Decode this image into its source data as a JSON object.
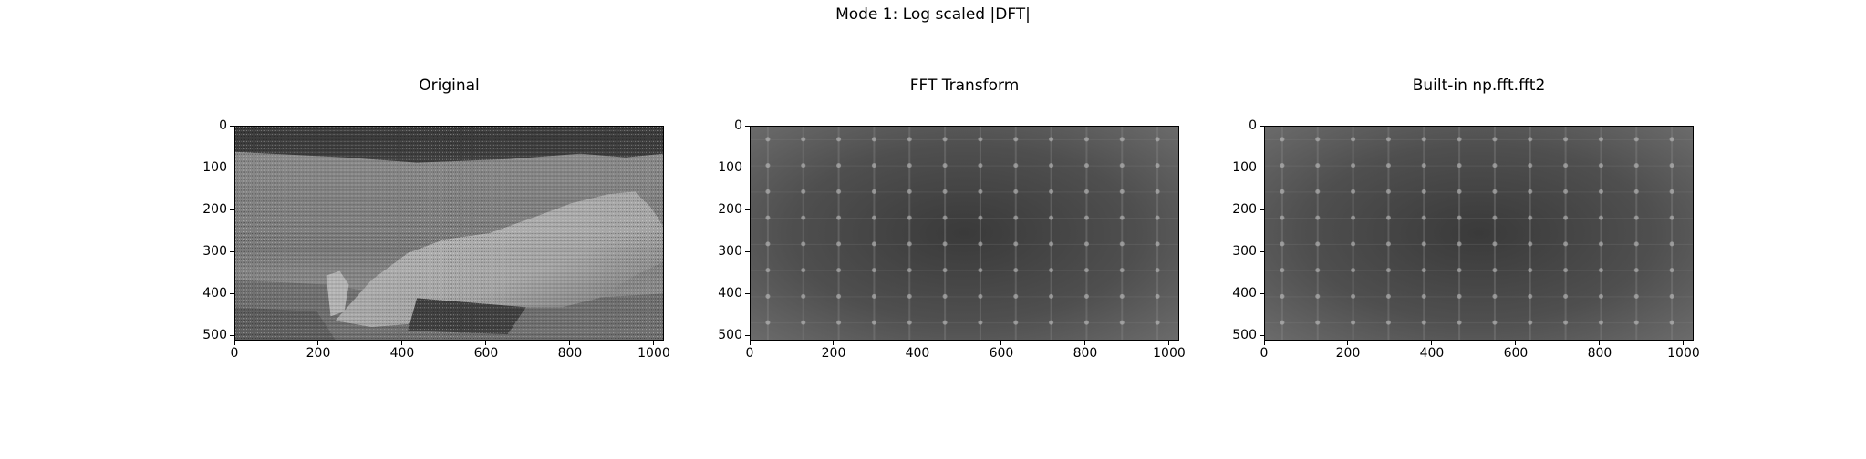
{
  "figure": {
    "suptitle": "Mode 1: Log scaled |DFT|"
  },
  "chart_data": [
    {
      "type": "heatmap",
      "title": "Original",
      "xlabel": "",
      "ylabel": "",
      "colormap": "gray",
      "xlim": [
        0,
        1024
      ],
      "ylim": [
        512,
        0
      ],
      "xticks": [
        0,
        200,
        400,
        600,
        800,
        1000
      ],
      "yticks": [
        0,
        100,
        200,
        300,
        400,
        500
      ],
      "xtick_labels": [
        "0",
        "200",
        "400",
        "600",
        "800",
        "1000"
      ],
      "ytick_labels": [
        "0",
        "100",
        "200",
        "300",
        "400",
        "500"
      ],
      "content": "noisy grayscale photograph of lunar surface with boulder"
    },
    {
      "type": "heatmap",
      "title": "FFT Transform",
      "xlabel": "",
      "ylabel": "",
      "colormap": "gray",
      "xlim": [
        0,
        1024
      ],
      "ylim": [
        512,
        0
      ],
      "xticks": [
        0,
        200,
        400,
        600,
        800,
        1000
      ],
      "yticks": [
        0,
        100,
        200,
        300,
        400,
        500
      ],
      "xtick_labels": [
        "0",
        "200",
        "400",
        "600",
        "800",
        "1000"
      ],
      "ytick_labels": [
        "0",
        "100",
        "200",
        "300",
        "400",
        "500"
      ],
      "content": "log scaled magnitude spectrum with periodic bright peaks"
    },
    {
      "type": "heatmap",
      "title": "Built-in np.fft.fft2",
      "xlabel": "",
      "ylabel": "",
      "colormap": "gray",
      "xlim": [
        0,
        1024
      ],
      "ylim": [
        512,
        0
      ],
      "xticks": [
        0,
        200,
        400,
        600,
        800,
        1000
      ],
      "yticks": [
        0,
        100,
        200,
        300,
        400,
        500
      ],
      "xtick_labels": [
        "0",
        "200",
        "400",
        "600",
        "800",
        "1000"
      ],
      "ytick_labels": [
        "0",
        "100",
        "200",
        "300",
        "400",
        "500"
      ],
      "content": "log scaled magnitude spectrum with periodic bright peaks"
    }
  ]
}
